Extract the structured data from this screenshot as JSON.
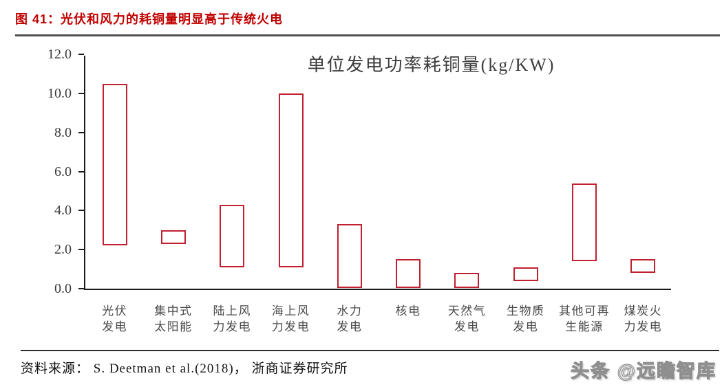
{
  "header": {
    "figure_label": "图 41：光伏和风力的耗铜量明显高于传统火电"
  },
  "chart_data": {
    "type": "bar",
    "subtype": "floating_range_bars",
    "title": "单位发电功率耗铜量(kg/KW)",
    "categories": [
      "光伏发电",
      "集中式太阳能",
      "陆上风力发电",
      "海上风力发电",
      "水力发电",
      "核电",
      "天然气发电",
      "生物质发电",
      "其他可再生能源",
      "煤炭火力发电"
    ],
    "category_label_lines": [
      [
        "光伏",
        "发电"
      ],
      [
        "集中式",
        "太阳能"
      ],
      [
        "陆上风",
        "力发电"
      ],
      [
        "海上风",
        "力发电"
      ],
      [
        "水力",
        "发电"
      ],
      [
        "核电"
      ],
      [
        "天然气",
        "发电"
      ],
      [
        "生物质",
        "发电"
      ],
      [
        "其他可再",
        "生能源"
      ],
      [
        "煤炭火",
        "力发电"
      ]
    ],
    "series": [
      {
        "name": "单位发电功率耗铜量范围 (kg/KW)",
        "ranges": [
          [
            2.2,
            10.5
          ],
          [
            2.3,
            3.0
          ],
          [
            1.1,
            4.3
          ],
          [
            1.1,
            10.0
          ],
          [
            0.05,
            3.3
          ],
          [
            0.05,
            1.5
          ],
          [
            0.05,
            0.8
          ],
          [
            0.4,
            1.1
          ],
          [
            1.4,
            5.4
          ],
          [
            0.8,
            1.5
          ]
        ]
      }
    ],
    "xlabel": "",
    "ylabel": "",
    "ylim": [
      0,
      12
    ],
    "yticks": [
      0,
      2,
      4,
      6,
      8,
      10,
      12
    ],
    "ytick_labels": [
      "0.0",
      "2.0",
      "4.0",
      "6.0",
      "8.0",
      "10.0",
      "12.0"
    ],
    "grid": false,
    "legend_position": "none",
    "bar_fill": "#FFFFFF",
    "bar_border_color": "#C0202F"
  },
  "footer": {
    "source_text": "资料来源： S. Deetman et al.(2018)， 浙商证券研究所",
    "watermark": "头条 @远瞻智库"
  },
  "colors": {
    "accent_red": "#C00000",
    "bar_border": "#C0202F",
    "axis": "#1A1A1A",
    "chart_text": "#3D3D3D",
    "label_text": "#4A4A4A",
    "watermark_gray": "#8F8F8F"
  }
}
